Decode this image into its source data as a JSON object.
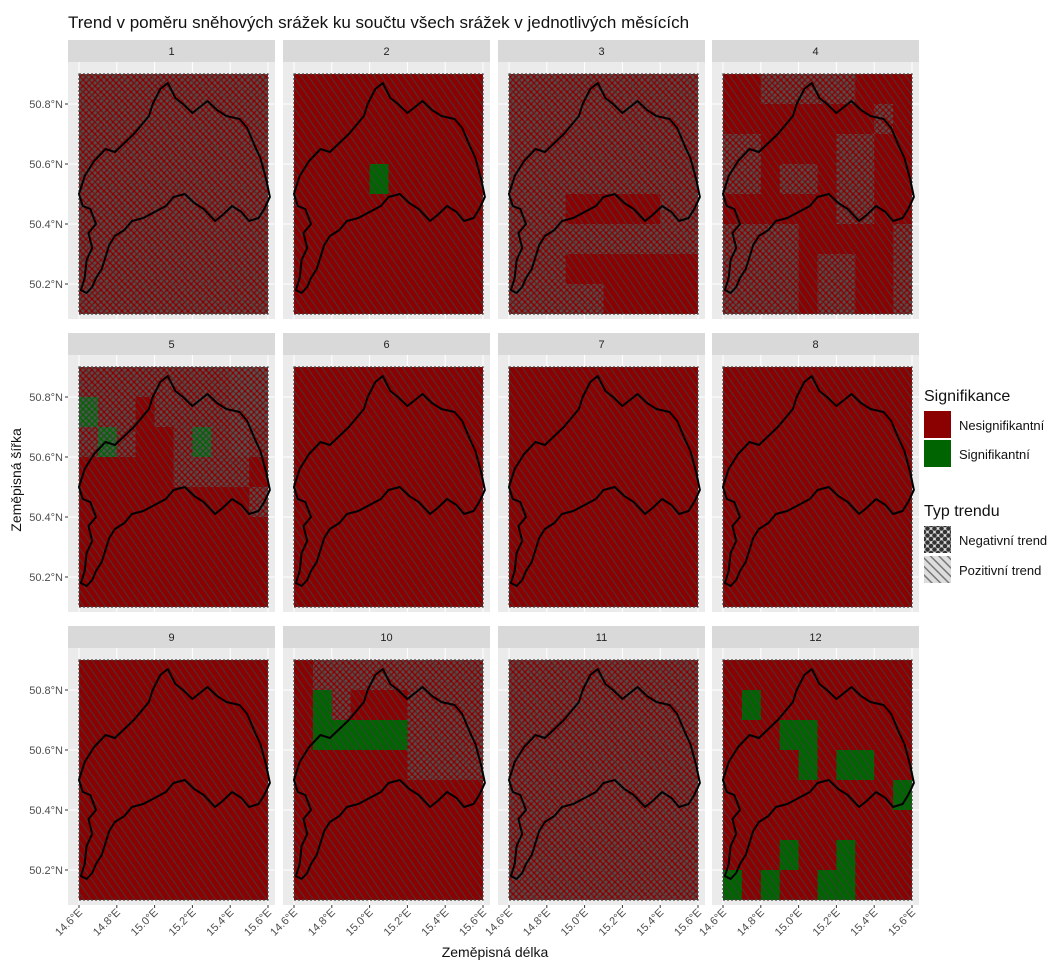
{
  "chart_data": {
    "type": "heatmap",
    "title": "Trend v poměru sněhových srážek ku součtu všech srážek v jednotlivých měsících",
    "xlabel": "Zeměpisná délka",
    "ylabel": "Zeměpisná šířka",
    "x_ticks": [
      "14.6°E",
      "14.8°E",
      "15.0°E",
      "15.2°E",
      "15.4°E",
      "15.6°E"
    ],
    "x_tick_values": [
      14.6,
      14.8,
      15.0,
      15.2,
      15.4,
      15.6
    ],
    "y_ticks": [
      "50.2°N",
      "50.4°N",
      "50.6°N",
      "50.8°N"
    ],
    "y_tick_values": [
      50.2,
      50.4,
      50.6,
      50.8
    ],
    "xlim": [
      14.6,
      15.6
    ],
    "ylim": [
      50.1,
      50.9
    ],
    "grid": true,
    "legend_position": "right",
    "colors": {
      "significant": "#006400",
      "nonsignificant": "#8b0000",
      "negative_fill": "#555555",
      "panel_bg": "#ebebeb",
      "strip_bg": "#d9d9d9"
    },
    "legend": {
      "significance": {
        "title": "Signifikance",
        "items": [
          "Nesignifikantní",
          "Signifikantní"
        ]
      },
      "trend": {
        "title": "Typ trendu",
        "items": [
          "Negativní trend",
          "Pozitivní trend"
        ]
      }
    },
    "panels": [
      {
        "label": "1",
        "sig": [],
        "neg": [
          "0-0:10-8"
        ],
        "pos": []
      },
      {
        "label": "2",
        "sig": [
          "4-3:5-4"
        ],
        "neg": [],
        "pos": []
      },
      {
        "label": "3",
        "sig": [],
        "neg": [
          "0-0:10-4",
          "0-4:3-8",
          "3-5:10-6",
          "3-7:5-8",
          "8-4:10-5"
        ],
        "pos": []
      },
      {
        "label": "4",
        "sig": [],
        "neg": [
          "2-0:7-1",
          "0-2:2-4",
          "3-3:5-4",
          "6-2:8-5",
          "0-5:4-8",
          "5-6:7-8",
          "9-5:10-8",
          "8-1:9-2"
        ],
        "pos": []
      },
      {
        "label": "5",
        "sig": [
          "0-1:1-2",
          "1-2:2-3",
          "6-2:7-3"
        ],
        "neg": [
          "0-0:10-1",
          "0-1:3-3",
          "4-1:10-2",
          "5-2:9-4",
          "8-0:10-3",
          "9-4:10-5"
        ],
        "pos": []
      },
      {
        "label": "6",
        "sig": [],
        "neg": [],
        "pos": []
      },
      {
        "label": "7",
        "sig": [],
        "neg": [],
        "pos": []
      },
      {
        "label": "8",
        "sig": [],
        "neg": [],
        "pos": []
      },
      {
        "label": "9",
        "sig": [],
        "neg": [],
        "pos": []
      },
      {
        "label": "10",
        "sig": [
          "1-1:2-3",
          "2-2:6-3"
        ],
        "neg": [
          "1-0:10-1",
          "2-1:3-2",
          "6-1:10-4"
        ],
        "pos": []
      },
      {
        "label": "11",
        "sig": [],
        "neg": [
          "0-0:10-8"
        ],
        "pos": []
      },
      {
        "label": "12",
        "sig": [
          "1-1:2-2",
          "3-2:5-3",
          "4-3:5-4",
          "6-3:8-4",
          "9-4:10-5",
          "3-6:4-7",
          "6-6:7-8",
          "0-7:1-8",
          "2-7:3-8",
          "5-7:6-8"
        ],
        "neg": [],
        "pos": []
      }
    ]
  }
}
